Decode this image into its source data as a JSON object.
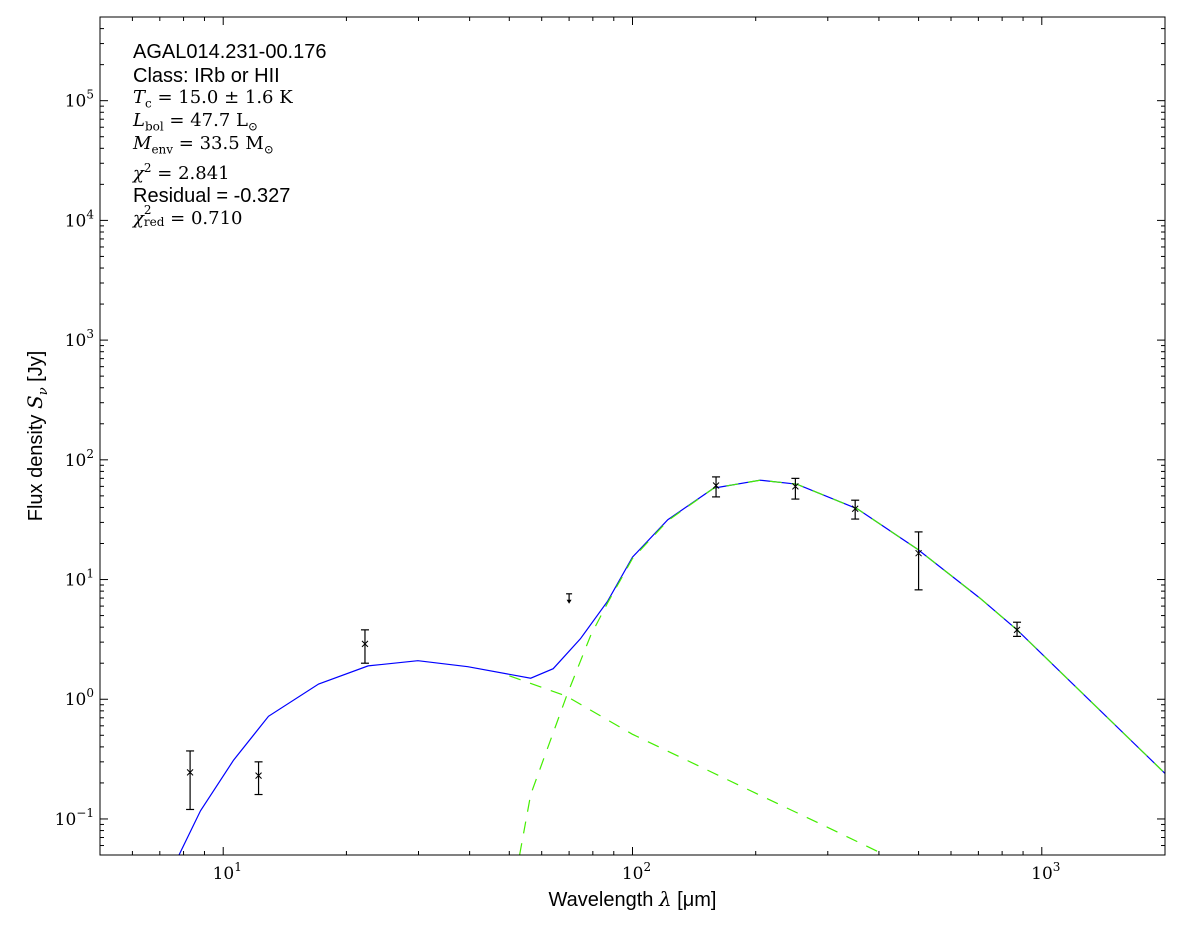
{
  "chart_data": {
    "type": "line",
    "xscale": "log",
    "yscale": "log",
    "xlim": [
      5,
      2000
    ],
    "ylim": [
      0.05,
      500000
    ],
    "xlabel": {
      "text": "Wavelength ",
      "symbol": "λ",
      "unit": " [μm]"
    },
    "ylabel": {
      "text": "Flux density ",
      "symbol": "S",
      "sub": "ν",
      "unit": " [Jy]"
    },
    "x_ticks": [
      {
        "base": "10",
        "exp": "1",
        "value": 10
      },
      {
        "base": "10",
        "exp": "2",
        "value": 100
      },
      {
        "base": "10",
        "exp": "3",
        "value": 1000
      }
    ],
    "y_ticks": [
      {
        "base": "10",
        "exp": "−1",
        "value": 0.1
      },
      {
        "base": "10",
        "exp": "0",
        "value": 1
      },
      {
        "base": "10",
        "exp": "1",
        "value": 10
      },
      {
        "base": "10",
        "exp": "2",
        "value": 100
      },
      {
        "base": "10",
        "exp": "3",
        "value": 1000
      },
      {
        "base": "10",
        "exp": "4",
        "value": 10000
      },
      {
        "base": "10",
        "exp": "5",
        "value": 100000
      }
    ],
    "grid": false,
    "annotations": {
      "source": "AGAL014.231-00.176",
      "class_line": "Class: IRb or HII",
      "tc": {
        "sym": "T",
        "sub": "c",
        "value": " = 15.0 ± 1.6 K"
      },
      "lbol": {
        "sym": "L",
        "sub": "bol",
        "value": " = 47.7 L",
        "unit_sub": "⊙"
      },
      "menv": {
        "sym": "M",
        "sub": "env",
        "value": " = 33.5 M",
        "unit_sub": "⊙"
      },
      "chi2": {
        "sym": "χ",
        "sup": "2",
        "value": " = 2.841"
      },
      "residual": "Residual = -0.327",
      "chi2red": {
        "sym": "χ",
        "sup": "2",
        "sub": "red",
        "value": " = 0.710"
      }
    },
    "measurements": [
      {
        "x": 8.3,
        "y": 0.245,
        "ylo": 0.12,
        "yhi": 0.37
      },
      {
        "x": 12.2,
        "y": 0.23,
        "ylo": 0.16,
        "yhi": 0.3
      },
      {
        "x": 22.2,
        "y": 2.9,
        "ylo": 2.0,
        "yhi": 3.8
      },
      {
        "x": 160,
        "y": 61,
        "ylo": 49,
        "yhi": 72
      },
      {
        "x": 250,
        "y": 60,
        "ylo": 47,
        "yhi": 70
      },
      {
        "x": 350,
        "y": 39,
        "ylo": 32,
        "yhi": 46
      },
      {
        "x": 500,
        "y": 16.6,
        "ylo": 8.2,
        "yhi": 25
      },
      {
        "x": 870,
        "y": 3.8,
        "ylo": 3.35,
        "yhi": 4.4
      }
    ],
    "upper_limits": [
      {
        "x": 70,
        "y": 7.6
      }
    ],
    "series": [
      {
        "style": "solid",
        "color": "#0000ff",
        "points": [
          [
            7.8,
            0.05
          ],
          [
            8.8,
            0.117
          ],
          [
            10.6,
            0.31
          ],
          [
            12.9,
            0.72
          ],
          [
            17.1,
            1.34
          ],
          [
            22.6,
            1.9
          ],
          [
            29.9,
            2.1
          ],
          [
            39.6,
            1.87
          ],
          [
            56.4,
            1.5
          ],
          [
            64,
            1.8
          ],
          [
            74.6,
            3.2
          ],
          [
            87,
            6.6
          ],
          [
            100,
            15.4
          ],
          [
            122,
            31.6
          ],
          [
            158,
            58
          ],
          [
            205,
            67.6
          ],
          [
            252,
            62.6
          ],
          [
            354,
            39
          ],
          [
            496,
            18
          ],
          [
            706,
            7.0
          ],
          [
            870,
            3.8
          ],
          [
            2000,
            0.24
          ]
        ]
      },
      {
        "style": "dashed",
        "color": "#44ee00",
        "points": [
          [
            50,
            1.57
          ],
          [
            69,
            1.06
          ],
          [
            100,
            0.51
          ],
          [
            200,
            0.164
          ],
          [
            300,
            0.085
          ],
          [
            414,
            0.05
          ]
        ]
      },
      {
        "style": "dashed",
        "color": "#44ee00",
        "points": [
          [
            53,
            0.05
          ],
          [
            56.4,
            0.16
          ],
          [
            69,
            1.06
          ],
          [
            79,
            3.4
          ],
          [
            87,
            6.4
          ],
          [
            100,
            15
          ],
          [
            122,
            31
          ],
          [
            158,
            58
          ],
          [
            205,
            67.6
          ],
          [
            252,
            62.6
          ],
          [
            354,
            39
          ],
          [
            496,
            18
          ],
          [
            706,
            7.0
          ],
          [
            870,
            3.8
          ],
          [
            2000,
            0.24
          ]
        ]
      }
    ]
  }
}
